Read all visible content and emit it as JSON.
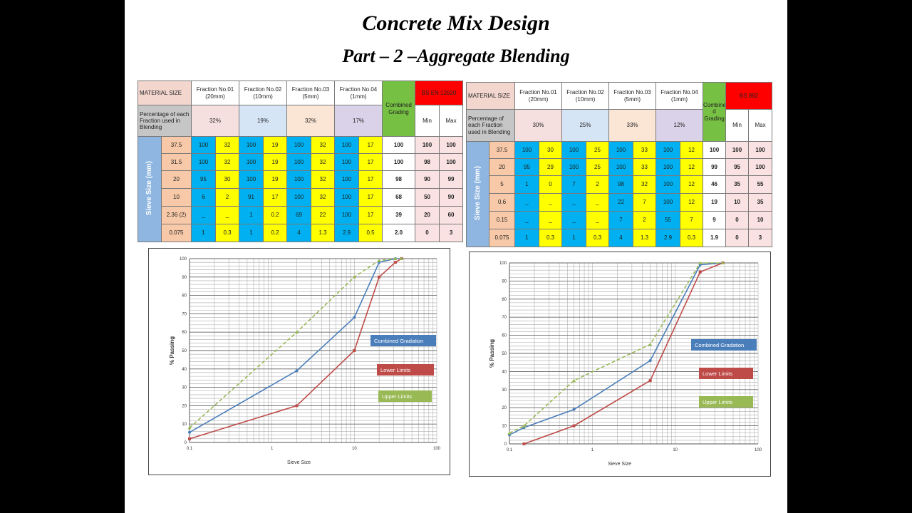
{
  "title": "Concrete Mix Design",
  "subtitle": "Part – 2 –Aggregate Blending",
  "table1": {
    "material_size": "MATERIAL SIZE",
    "fractions": [
      "Fraction No.01 (20mm)",
      "Fraction No.02 (10mm)",
      "Fraction No.03 (5mm)",
      "Fraction No.04 (1mm)"
    ],
    "combined": "Combined Grading",
    "standard": "BS EN 12620",
    "min": "Min",
    "max": "Max",
    "pct_label": "Percentage of each Fraction used in Blending",
    "pcts": [
      "32%",
      "19%",
      "32%",
      "17%"
    ],
    "sieve_label": "Sieve Size (mm)",
    "rows": [
      {
        "size": "37.5",
        "vals": [
          "100",
          "32",
          "100",
          "19",
          "100",
          "32",
          "100",
          "17"
        ],
        "comb": "100",
        "min": "100",
        "max": "100"
      },
      {
        "size": "31.5",
        "vals": [
          "100",
          "32",
          "100",
          "19",
          "100",
          "32",
          "100",
          "17"
        ],
        "comb": "100",
        "min": "98",
        "max": "100"
      },
      {
        "size": "20",
        "vals": [
          "95",
          "30",
          "100",
          "19",
          "100",
          "32",
          "100",
          "17"
        ],
        "comb": "98",
        "min": "90",
        "max": "99"
      },
      {
        "size": "10",
        "vals": [
          "6",
          "2",
          "91",
          "17",
          "100",
          "32",
          "100",
          "17"
        ],
        "comb": "68",
        "min": "50",
        "max": "90"
      },
      {
        "size": "2.36 (2)",
        "vals": [
          "_",
          "_",
          "1",
          "0.2",
          "69",
          "22",
          "100",
          "17"
        ],
        "comb": "39",
        "min": "20",
        "max": "60"
      },
      {
        "size": "0.075",
        "vals": [
          "1",
          "0.3",
          "1",
          "0.2",
          "4",
          "1.3",
          "2.9",
          "0.5"
        ],
        "comb": "2.0",
        "min": "0",
        "max": "3"
      }
    ]
  },
  "table2": {
    "material_size": "MATERIAL SIZE",
    "fractions": [
      "Fraction No.01 (20mm)",
      "Fraction No.02 (10mm)",
      "Fraction No.03 (5mm)",
      "Fraction No.04 (1mm)"
    ],
    "combined": "Combine d Grading",
    "standard": "BS 882",
    "min": "Min",
    "max": "Max",
    "pct_label": "Percentage of each Fraction used in Blending",
    "pcts": [
      "30%",
      "25%",
      "33%",
      "12%"
    ],
    "sieve_label": "Sieve Size (mm)",
    "rows": [
      {
        "size": "37.5",
        "vals": [
          "100",
          "30",
          "100",
          "25",
          "100",
          "33",
          "100",
          "12"
        ],
        "comb": "100",
        "min": "100",
        "max": "100"
      },
      {
        "size": "20",
        "vals": [
          "95",
          "29",
          "100",
          "25",
          "100",
          "33",
          "100",
          "12"
        ],
        "comb": "99",
        "min": "95",
        "max": "100"
      },
      {
        "size": "5",
        "vals": [
          "1",
          "0",
          "7",
          "2",
          "98",
          "32",
          "100",
          "12"
        ],
        "comb": "46",
        "min": "35",
        "max": "55"
      },
      {
        "size": "0.6",
        "vals": [
          "_",
          "_",
          "_",
          "_",
          "22",
          "7",
          "100",
          "12"
        ],
        "comb": "19",
        "min": "10",
        "max": "35"
      },
      {
        "size": "0.15",
        "vals": [
          "_",
          "_",
          "_",
          "_",
          "7",
          "2",
          "55",
          "7"
        ],
        "comb": "9",
        "min": "0",
        "max": "10"
      },
      {
        "size": "0.075",
        "vals": [
          "1",
          "0.3",
          "1",
          "0.3",
          "4",
          "1.3",
          "2.9",
          "0.3"
        ],
        "comb": "1.9",
        "min": "0",
        "max": "3"
      }
    ]
  },
  "colors": {
    "combined": "#4a7ebb",
    "lower": "#be4b48",
    "upper": "#98b954"
  },
  "chart_data": [
    {
      "type": "line",
      "xscale": "log",
      "xlim": [
        0.1,
        100
      ],
      "ylim": [
        0,
        100
      ],
      "xlabel": "Sieve Size",
      "ylabel": "% Passing",
      "xticks": [
        "0.1",
        "1",
        "10",
        "100"
      ],
      "yticks": [
        "0",
        "10",
        "20",
        "30",
        "40",
        "50",
        "60",
        "70",
        "80",
        "90",
        "100"
      ],
      "series": [
        {
          "name": "Combined Gradation",
          "points": [
            [
              0.1,
              5.5
            ],
            [
              2,
              39
            ],
            [
              10,
              68
            ],
            [
              20,
              98
            ],
            [
              31.5,
              100
            ],
            [
              37.5,
              100
            ]
          ]
        },
        {
          "name": "Lower Limits",
          "points": [
            [
              0.1,
              2
            ],
            [
              2,
              20
            ],
            [
              10,
              50
            ],
            [
              20,
              90
            ],
            [
              31.5,
              98
            ],
            [
              37.5,
              100
            ]
          ]
        },
        {
          "name": "Upper Limits",
          "points": [
            [
              0.1,
              8
            ],
            [
              2,
              60
            ],
            [
              10,
              90
            ],
            [
              20,
              99
            ],
            [
              31.5,
              100
            ],
            [
              37.5,
              100
            ]
          ]
        }
      ]
    },
    {
      "type": "line",
      "xscale": "log",
      "xlim": [
        0.1,
        100
      ],
      "ylim": [
        0,
        100
      ],
      "xlabel": "Sieve Size",
      "ylabel": "% Passing",
      "xticks": [
        "0.1",
        "1",
        "10",
        "100"
      ],
      "yticks": [
        "0",
        "10",
        "20",
        "30",
        "40",
        "50",
        "60",
        "70",
        "80",
        "90",
        "100"
      ],
      "series": [
        {
          "name": "Combined Gradation",
          "points": [
            [
              0.1,
              5
            ],
            [
              0.15,
              9
            ],
            [
              0.6,
              19
            ],
            [
              5,
              46
            ],
            [
              20,
              99
            ],
            [
              37.5,
              100
            ]
          ]
        },
        {
          "name": "Lower Limits",
          "points": [
            [
              0.15,
              0
            ],
            [
              0.6,
              10
            ],
            [
              5,
              35
            ],
            [
              20,
              95
            ],
            [
              37.5,
              100
            ]
          ]
        },
        {
          "name": "Upper Limits",
          "points": [
            [
              0.1,
              6
            ],
            [
              0.15,
              10
            ],
            [
              0.6,
              35
            ],
            [
              5,
              55
            ],
            [
              20,
              100
            ],
            [
              37.5,
              100
            ]
          ]
        }
      ]
    }
  ]
}
